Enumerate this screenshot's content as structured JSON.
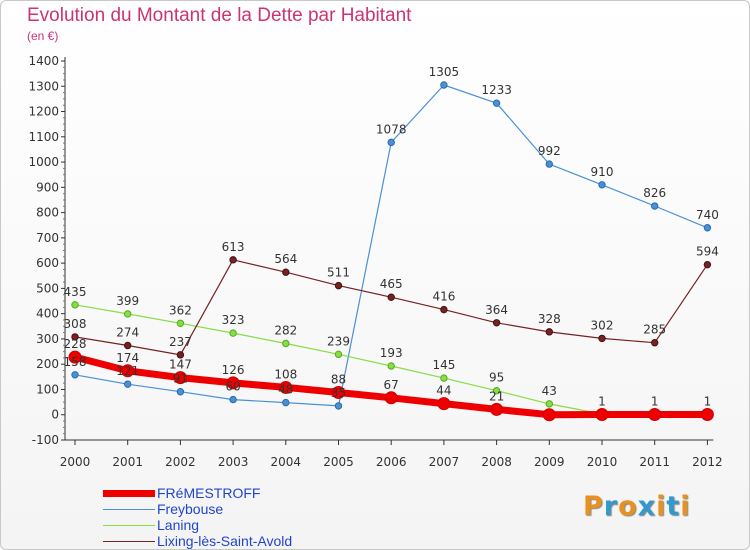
{
  "title": "Evolution du Montant de la Dette par Habitant",
  "subtitle": "(en €)",
  "brand": {
    "letters": [
      "P",
      "r",
      "o",
      "x",
      "i",
      "t",
      "i"
    ],
    "colors": [
      "#e89020",
      "#3399cc",
      "#e89020",
      "#3399cc",
      "#e89020",
      "#3399cc",
      "#e89020"
    ]
  },
  "chart_data": {
    "type": "line",
    "title": "Evolution du Montant de la Dette par Habitant",
    "subtitle": "(en €)",
    "x": [
      "2000",
      "2001",
      "2002",
      "2003",
      "2004",
      "2005",
      "2006",
      "2007",
      "2008",
      "2009",
      "2010",
      "2011",
      "2012"
    ],
    "ylim": [
      -100,
      1400
    ],
    "yticks": [
      -100,
      0,
      100,
      200,
      300,
      400,
      500,
      600,
      700,
      800,
      900,
      1000,
      1100,
      1200,
      1300,
      1400
    ],
    "grid": false,
    "legend": "bottom-left",
    "series": [
      {
        "name": "FRéMESTROFF",
        "color": "#ee0000",
        "values": [
          228,
          174,
          147,
          126,
          108,
          88,
          67,
          44,
          21,
          0,
          1,
          1,
          1
        ],
        "labels": [
          "228",
          "174",
          "147",
          "126",
          "108",
          "88",
          "67",
          "44",
          "21",
          "",
          "1",
          "1",
          "1"
        ]
      },
      {
        "name": "Freybouse",
        "color": "#4a90d9",
        "values": [
          158,
          121,
          91,
          60,
          48,
          35,
          1078,
          1305,
          1233,
          992,
          910,
          826,
          740
        ],
        "labels": [
          "158",
          "121",
          "91",
          "60",
          "48",
          "35",
          "1078",
          "1305",
          "1233",
          "992",
          "910",
          "826",
          "740"
        ]
      },
      {
        "name": "Laning",
        "color": "#88dd44",
        "values": [
          435,
          399,
          362,
          323,
          282,
          239,
          193,
          145,
          95,
          43,
          3,
          3,
          3
        ],
        "labels": [
          "435",
          "399",
          "362",
          "323",
          "282",
          "239",
          "193",
          "145",
          "95",
          "43",
          "",
          "",
          ""
        ]
      },
      {
        "name": "Lixing-lès-Saint-Avold",
        "color": "#772222",
        "values": [
          308,
          274,
          237,
          613,
          564,
          511,
          465,
          416,
          364,
          328,
          302,
          285,
          594
        ],
        "labels": [
          "308",
          "274",
          "237",
          "613",
          "564",
          "511",
          "465",
          "416",
          "364",
          "328",
          "302",
          "285",
          "594"
        ]
      }
    ]
  }
}
